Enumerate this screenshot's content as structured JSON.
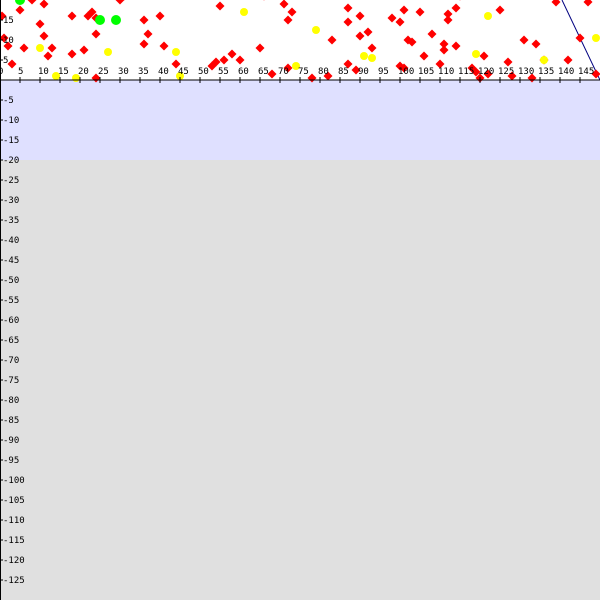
{
  "chart_data": {
    "type": "scatter",
    "xlim": [
      0,
      150
    ],
    "ylim": [
      -130,
      20
    ],
    "x_ticks": [
      0,
      5,
      10,
      15,
      20,
      25,
      30,
      35,
      40,
      45,
      50,
      55,
      60,
      65,
      70,
      75,
      80,
      85,
      90,
      95,
      100,
      105,
      110,
      115,
      120,
      125,
      130,
      135,
      140,
      145
    ],
    "y_ticks": [
      15,
      10,
      5,
      -5,
      -10,
      -15,
      -20,
      -25,
      -30,
      -35,
      -40,
      -45,
      -50,
      -55,
      -60,
      -65,
      -70,
      -75,
      -80,
      -85,
      -90,
      -95,
      -100,
      -105,
      -110,
      -115,
      -120,
      -125
    ],
    "grid": false,
    "legend": "none",
    "colors": {
      "plot_top_band": "#ffffff",
      "plot_mid_band": "#dfe0ff",
      "plot_bottom_band": "#e0e0e0",
      "axis": "#000000",
      "red": "#ff0000",
      "yellow": "#ffff00",
      "green": "#00ff00",
      "line": "#000080"
    },
    "line": {
      "x": [
        140.5,
        150
      ],
      "y": [
        20,
        0
      ]
    },
    "series": [
      {
        "color_key": "red",
        "points": [
          [
            0.5,
            16
          ],
          [
            5,
            17.5
          ],
          [
            8,
            20
          ],
          [
            11,
            19
          ],
          [
            16,
            21.5
          ],
          [
            18,
            16
          ],
          [
            22,
            16
          ],
          [
            23,
            17
          ],
          [
            24,
            15.5
          ],
          [
            24,
            11.5
          ],
          [
            30,
            20
          ],
          [
            31,
            21
          ],
          [
            36,
            15
          ],
          [
            37,
            11.5
          ],
          [
            40,
            16
          ],
          [
            41,
            8.5
          ],
          [
            44,
            4
          ],
          [
            55,
            18.5
          ],
          [
            66,
            21
          ],
          [
            71,
            19
          ],
          [
            72,
            15
          ],
          [
            73,
            17
          ],
          [
            87,
            18
          ],
          [
            87,
            14.5
          ],
          [
            90,
            16
          ],
          [
            92,
            12
          ],
          [
            93,
            8
          ],
          [
            98,
            15.5
          ],
          [
            100,
            14.5
          ],
          [
            101,
            17.5
          ],
          [
            105,
            17
          ],
          [
            112,
            16.5
          ],
          [
            112,
            15
          ],
          [
            114,
            18
          ],
          [
            115,
            21
          ],
          [
            125,
            17.5
          ],
          [
            139,
            19.5
          ],
          [
            147,
            19.5
          ],
          [
            1,
            10.5
          ],
          [
            2,
            8.5
          ],
          [
            3,
            4
          ],
          [
            6,
            8
          ],
          [
            10,
            14
          ],
          [
            11,
            11
          ],
          [
            12,
            6
          ],
          [
            13,
            8
          ],
          [
            18,
            6.5
          ],
          [
            21,
            7.5
          ],
          [
            24,
            0.5
          ],
          [
            36,
            9
          ],
          [
            53,
            3.5
          ],
          [
            54,
            4.5
          ],
          [
            56,
            5
          ],
          [
            58,
            6.5
          ],
          [
            60,
            5
          ],
          [
            65,
            8
          ],
          [
            68,
            1.5
          ],
          [
            72,
            3
          ],
          [
            78,
            0.5
          ],
          [
            82,
            1
          ],
          [
            83,
            10
          ],
          [
            87,
            4
          ],
          [
            89,
            2.5
          ],
          [
            90,
            11
          ],
          [
            100,
            3.5
          ],
          [
            101,
            3
          ],
          [
            102,
            10
          ],
          [
            103,
            9.5
          ],
          [
            106,
            6
          ],
          [
            108,
            11.5
          ],
          [
            111,
            9
          ],
          [
            111,
            7.5
          ],
          [
            114,
            8.5
          ],
          [
            110,
            4
          ],
          [
            118,
            3
          ],
          [
            119,
            2
          ],
          [
            120,
            0.5
          ],
          [
            121,
            6
          ],
          [
            122,
            1.5
          ],
          [
            127,
            4.5
          ],
          [
            128,
            1
          ],
          [
            131,
            10
          ],
          [
            133,
            0.5
          ],
          [
            134,
            9
          ],
          [
            136,
            5
          ],
          [
            142,
            5
          ],
          [
            145,
            10.5
          ],
          [
            149,
            1.5
          ]
        ]
      },
      {
        "color_key": "yellow",
        "points": [
          [
            10,
            8
          ],
          [
            14,
            1
          ],
          [
            19,
            0.5
          ],
          [
            27,
            7
          ],
          [
            44,
            7
          ],
          [
            45,
            1
          ],
          [
            61,
            17
          ],
          [
            74,
            3.5
          ],
          [
            79,
            12.5
          ],
          [
            91,
            6
          ],
          [
            93,
            5.5
          ],
          [
            101,
            21
          ],
          [
            119,
            6.5
          ],
          [
            122,
            16
          ],
          [
            136,
            5
          ],
          [
            149,
            10.5
          ]
        ]
      },
      {
        "color_key": "green",
        "points": [
          [
            5,
            20
          ],
          [
            25,
            15
          ],
          [
            29,
            15
          ]
        ]
      }
    ]
  }
}
